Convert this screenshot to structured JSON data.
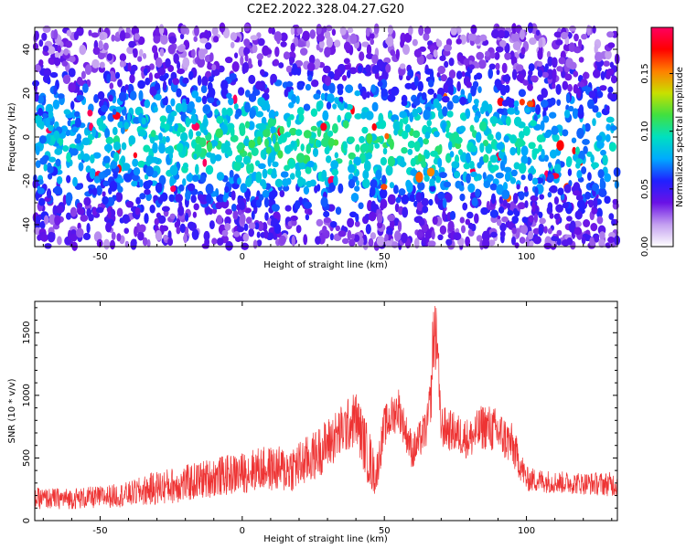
{
  "title": "C2E2.2022.328.04.27.G20",
  "colors": {
    "snr_line": "#ee3333",
    "axis": "#000000",
    "heat_low": "#ffffff",
    "heat_mid": "#6a12e6",
    "heat_high": "#ff0040"
  },
  "chart_data": [
    {
      "type": "heatmap",
      "title": "C2E2.2022.328.04.27.G20",
      "xlabel": "Height of straight line (km)",
      "ylabel": "Frequency (Hz)",
      "xlim": [
        -73,
        132
      ],
      "ylim": [
        -50,
        50
      ],
      "x_ticks": [
        -50,
        0,
        50,
        100
      ],
      "y_ticks": [
        -40,
        -20,
        0,
        20,
        40
      ],
      "colorbar": {
        "label": "Normalized spectral amplitude",
        "range": [
          0,
          0.19
        ],
        "ticks": [
          "0.00",
          "0.05",
          "0.10",
          "0.15"
        ],
        "tick_values": [
          0,
          0.05,
          0.1,
          0.15
        ],
        "colormap": [
          "#ffffff",
          "#c4a0f0",
          "#6a12e6",
          "#2020ff",
          "#00aaff",
          "#00e0c0",
          "#40e040",
          "#c8e000",
          "#ff8000",
          "#ff0000",
          "#ff0060"
        ]
      },
      "profile": {
        "note_x": [
          -73,
          -50,
          0,
          50,
          100,
          132
        ],
        "peak_frequency_hz": [
          -5,
          -5,
          -5,
          -8,
          -5,
          -5
        ],
        "high_band_hz": [
          10,
          10,
          10,
          10,
          10,
          10
        ],
        "upper_quiet_region_hz": [
          35,
          50
        ]
      }
    },
    {
      "type": "line",
      "xlabel": "Height of straight line (km)",
      "ylabel": "SNR (10 * v/v)",
      "xlim": [
        -73,
        132
      ],
      "ylim": [
        0,
        1750
      ],
      "x_ticks": [
        -50,
        0,
        50,
        100
      ],
      "y_ticks": [
        0,
        500,
        1000,
        1500
      ],
      "grid": false,
      "envelope": {
        "x": [
          -73,
          -60,
          -50,
          -40,
          -30,
          -20,
          -10,
          0,
          5,
          10,
          15,
          20,
          25,
          30,
          35,
          40,
          45,
          47,
          50,
          55,
          57,
          60,
          65,
          68,
          70,
          75,
          80,
          85,
          90,
          95,
          100,
          110,
          120,
          132
        ],
        "base": [
          150,
          150,
          160,
          180,
          220,
          250,
          300,
          330,
          360,
          360,
          350,
          380,
          450,
          550,
          650,
          750,
          400,
          300,
          700,
          850,
          700,
          500,
          700,
          1200,
          700,
          650,
          600,
          700,
          650,
          550,
          300,
          280,
          270,
          260
        ],
        "spread": [
          170,
          170,
          180,
          200,
          280,
          300,
          320,
          330,
          350,
          360,
          380,
          400,
          400,
          420,
          430,
          450,
          480,
          300,
          330,
          350,
          300,
          300,
          320,
          500,
          350,
          330,
          330,
          380,
          380,
          350,
          200,
          180,
          180,
          200
        ]
      }
    }
  ]
}
